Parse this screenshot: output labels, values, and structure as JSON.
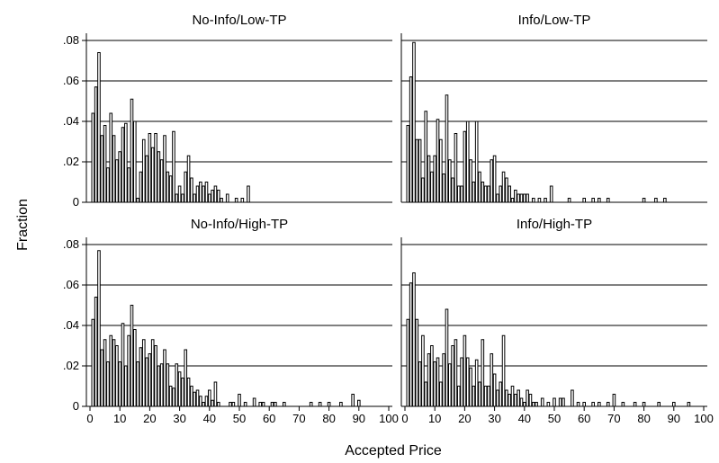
{
  "chart_data": {
    "type": "bar",
    "xlabel": "Accepted Price",
    "ylabel": "Fraction",
    "xlim": [
      0,
      100
    ],
    "ylim": [
      0,
      0.08
    ],
    "x_ticks": [
      0,
      10,
      20,
      30,
      40,
      50,
      60,
      70,
      80,
      90,
      100
    ],
    "x_tick_labels": [
      "0",
      "10",
      "20",
      "30",
      "40",
      "50",
      "60",
      "70",
      "80",
      "90",
      "100"
    ],
    "y_ticks": [
      0,
      0.02,
      0.04,
      0.06,
      0.08
    ],
    "y_tick_labels": [
      "0",
      ".02",
      ".04",
      ".06",
      ".08"
    ],
    "grid": "horizontal",
    "panels": [
      {
        "title": "No-Info/Low-TP",
        "x": [
          1,
          2,
          3,
          4,
          5,
          6,
          7,
          8,
          9,
          10,
          11,
          12,
          13,
          14,
          15,
          16,
          17,
          18,
          19,
          20,
          21,
          22,
          23,
          24,
          25,
          26,
          27,
          28,
          29,
          30,
          31,
          32,
          33,
          34,
          35,
          36,
          37,
          38,
          39,
          40,
          41,
          42,
          43,
          44,
          46,
          49,
          51,
          53
        ],
        "values": [
          0.044,
          0.057,
          0.074,
          0.033,
          0.038,
          0.017,
          0.044,
          0.033,
          0.021,
          0.025,
          0.037,
          0.039,
          0.017,
          0.051,
          0.04,
          0.002,
          0.015,
          0.031,
          0.023,
          0.034,
          0.027,
          0.034,
          0.025,
          0.021,
          0.033,
          0.015,
          0.013,
          0.035,
          0.004,
          0.008,
          0.004,
          0.015,
          0.023,
          0.012,
          0.004,
          0.008,
          0.01,
          0.008,
          0.01,
          0.004,
          0.006,
          0.008,
          0.006,
          0.002,
          0.004,
          0.002,
          0.002,
          0.008
        ]
      },
      {
        "title": "Info/Low-TP",
        "x": [
          1,
          2,
          3,
          4,
          5,
          6,
          7,
          8,
          9,
          10,
          11,
          12,
          13,
          14,
          15,
          16,
          17,
          18,
          19,
          20,
          21,
          22,
          23,
          24,
          25,
          26,
          27,
          28,
          29,
          30,
          31,
          32,
          33,
          34,
          35,
          36,
          37,
          38,
          39,
          40,
          41,
          43,
          45,
          47,
          49,
          55,
          60,
          63,
          65,
          68,
          80,
          84,
          87
        ],
        "values": [
          0.038,
          0.062,
          0.079,
          0.031,
          0.031,
          0.012,
          0.045,
          0.023,
          0.015,
          0.023,
          0.041,
          0.031,
          0.014,
          0.053,
          0.021,
          0.012,
          0.034,
          0.008,
          0.008,
          0.035,
          0.04,
          0.021,
          0.01,
          0.04,
          0.015,
          0.01,
          0.008,
          0.008,
          0.021,
          0.023,
          0.004,
          0.008,
          0.015,
          0.012,
          0.008,
          0.002,
          0.006,
          0.004,
          0.004,
          0.004,
          0.004,
          0.002,
          0.002,
          0.002,
          0.008,
          0.002,
          0.002,
          0.002,
          0.002,
          0.002,
          0.002,
          0.002,
          0.002
        ]
      },
      {
        "title": "No-Info/High-TP",
        "x": [
          1,
          2,
          3,
          4,
          5,
          6,
          7,
          8,
          9,
          10,
          11,
          12,
          13,
          14,
          15,
          16,
          17,
          18,
          19,
          20,
          21,
          22,
          23,
          24,
          25,
          26,
          27,
          28,
          29,
          30,
          31,
          32,
          33,
          34,
          35,
          36,
          37,
          38,
          39,
          40,
          41,
          42,
          43,
          47,
          48,
          50,
          52,
          55,
          57,
          58,
          61,
          62,
          65,
          74,
          77,
          80,
          84,
          88,
          90
        ],
        "values": [
          0.043,
          0.054,
          0.077,
          0.028,
          0.033,
          0.022,
          0.035,
          0.033,
          0.03,
          0.022,
          0.041,
          0.02,
          0.035,
          0.05,
          0.038,
          0.022,
          0.029,
          0.033,
          0.024,
          0.026,
          0.033,
          0.03,
          0.02,
          0.021,
          0.028,
          0.021,
          0.01,
          0.009,
          0.021,
          0.017,
          0.014,
          0.028,
          0.014,
          0.01,
          0.007,
          0.008,
          0.005,
          0.002,
          0.005,
          0.008,
          0.003,
          0.012,
          0.002,
          0.002,
          0.002,
          0.006,
          0.002,
          0.004,
          0.002,
          0.002,
          0.002,
          0.002,
          0.002,
          0.002,
          0.002,
          0.002,
          0.002,
          0.006,
          0.003
        ]
      },
      {
        "title": "Info/High-TP",
        "x": [
          1,
          2,
          3,
          4,
          5,
          6,
          7,
          8,
          9,
          10,
          11,
          12,
          13,
          14,
          15,
          16,
          17,
          18,
          19,
          20,
          21,
          22,
          23,
          24,
          25,
          26,
          27,
          28,
          29,
          30,
          31,
          32,
          33,
          34,
          35,
          36,
          37,
          38,
          39,
          40,
          41,
          42,
          43,
          44,
          46,
          48,
          50,
          52,
          53,
          56,
          58,
          60,
          63,
          65,
          68,
          70,
          73,
          77,
          80,
          85,
          90,
          95
        ],
        "values": [
          0.043,
          0.061,
          0.066,
          0.043,
          0.022,
          0.035,
          0.012,
          0.026,
          0.03,
          0.022,
          0.024,
          0.012,
          0.026,
          0.048,
          0.021,
          0.03,
          0.033,
          0.01,
          0.024,
          0.035,
          0.024,
          0.019,
          0.01,
          0.023,
          0.012,
          0.033,
          0.01,
          0.01,
          0.026,
          0.016,
          0.008,
          0.012,
          0.035,
          0.008,
          0.006,
          0.01,
          0.006,
          0.008,
          0.004,
          0.002,
          0.008,
          0.006,
          0.002,
          0.002,
          0.004,
          0.002,
          0.004,
          0.004,
          0.004,
          0.008,
          0.002,
          0.002,
          0.002,
          0.002,
          0.002,
          0.006,
          0.002,
          0.002,
          0.002,
          0.002,
          0.002,
          0.002
        ]
      }
    ]
  }
}
